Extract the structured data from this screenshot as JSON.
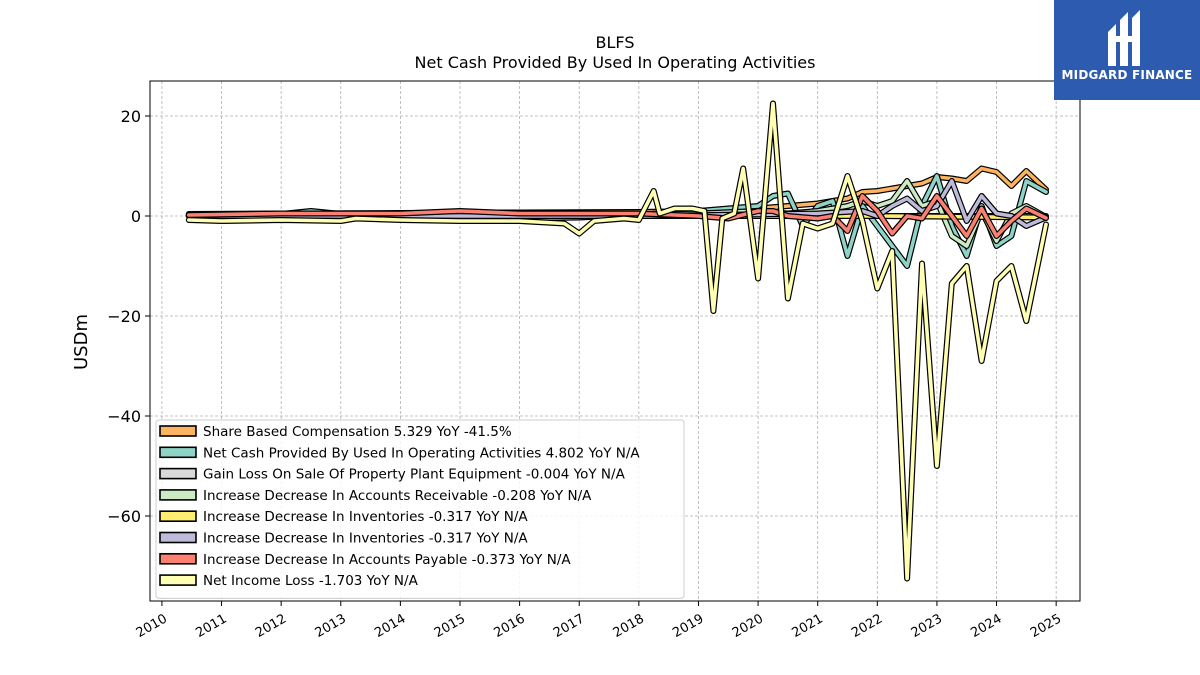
{
  "brand": {
    "name": "MIDGARD FINANCE",
    "colors": {
      "logo_bg": "#2d5bb0",
      "logo_fg": "#ffffff"
    }
  },
  "chart_data": {
    "type": "line",
    "title": "BLFS",
    "subtitle": "Net Cash Provided By Used In Operating Activities",
    "ylabel": "USDm",
    "xlabel": "",
    "xlim": [
      2009.8,
      2025.4
    ],
    "ylim": [
      -77,
      27
    ],
    "yticks": [
      20,
      0,
      -20,
      -40,
      -60
    ],
    "ytick_labels": [
      "20",
      "0",
      "−20",
      "−40",
      "−60"
    ],
    "xticks": [
      2010,
      2011,
      2012,
      2013,
      2014,
      2015,
      2016,
      2017,
      2018,
      2019,
      2020,
      2021,
      2022,
      2023,
      2024,
      2025
    ],
    "xtick_labels": [
      "2010",
      "2011",
      "2012",
      "2013",
      "2014",
      "2015",
      "2016",
      "2017",
      "2018",
      "2019",
      "2020",
      "2021",
      "2022",
      "2023",
      "2024",
      "2025"
    ],
    "grid": true,
    "legend_position": "lower-left",
    "series": [
      {
        "name": "Share Based Compensation  5.329 YoY -41.5%",
        "color": "#fdb462",
        "points": [
          [
            2010.45,
            0.4
          ],
          [
            2012,
            0.5
          ],
          [
            2014,
            0.6
          ],
          [
            2016,
            0.7
          ],
          [
            2018,
            0.8
          ],
          [
            2019,
            1.0
          ],
          [
            2020,
            1.5
          ],
          [
            2021,
            2.5
          ],
          [
            2021.5,
            3.5
          ],
          [
            2021.75,
            4.8
          ],
          [
            2022,
            5.0
          ],
          [
            2022.25,
            5.5
          ],
          [
            2022.5,
            6.0
          ],
          [
            2022.75,
            6.5
          ],
          [
            2023,
            7.8
          ],
          [
            2023.25,
            7.5
          ],
          [
            2023.5,
            7.0
          ],
          [
            2023.75,
            9.5
          ],
          [
            2024,
            8.8
          ],
          [
            2024.25,
            6.0
          ],
          [
            2024.5,
            9.0
          ],
          [
            2024.83,
            5.3
          ]
        ]
      },
      {
        "name": "Net Cash Provided By Used In Operating Activities  4.802 YoY N/A",
        "color": "#8dd3c7",
        "points": [
          [
            2010.45,
            0.2
          ],
          [
            2011,
            0.3
          ],
          [
            2012,
            0.4
          ],
          [
            2012.5,
            1.0
          ],
          [
            2013,
            0.4
          ],
          [
            2014,
            0.3
          ],
          [
            2015,
            -1.0
          ],
          [
            2016,
            -0.5
          ],
          [
            2017,
            -0.3
          ],
          [
            2018,
            0.3
          ],
          [
            2019,
            1.0
          ],
          [
            2019.5,
            1.5
          ],
          [
            2020,
            2.0
          ],
          [
            2020.25,
            4.0
          ],
          [
            2020.5,
            4.5
          ],
          [
            2020.75,
            -2.0
          ],
          [
            2021,
            2.0
          ],
          [
            2021.25,
            3.0
          ],
          [
            2021.5,
            -8.0
          ],
          [
            2021.75,
            2.0
          ],
          [
            2022,
            -2.0
          ],
          [
            2022.25,
            -6.0
          ],
          [
            2022.5,
            -10.0
          ],
          [
            2022.75,
            2.0
          ],
          [
            2023,
            8.0
          ],
          [
            2023.25,
            -2.0
          ],
          [
            2023.5,
            -8.0
          ],
          [
            2023.75,
            2.0
          ],
          [
            2024,
            -6.0
          ],
          [
            2024.25,
            -4.0
          ],
          [
            2024.5,
            7.0
          ],
          [
            2024.83,
            4.8
          ]
        ]
      },
      {
        "name": "Gain Loss On Sale Of Property Plant Equipment  -0.004 YoY N/A",
        "color": "#d9d9d9",
        "points": [
          [
            2010.45,
            0.0
          ],
          [
            2014,
            0.0
          ],
          [
            2018,
            0.0
          ],
          [
            2020,
            0.0
          ],
          [
            2022,
            0.0
          ],
          [
            2024.83,
            0.0
          ]
        ]
      },
      {
        "name": "Increase Decrease In Accounts Receivable  -0.208 YoY N/A",
        "color": "#ccebc5",
        "points": [
          [
            2010.45,
            0.2
          ],
          [
            2014,
            0.2
          ],
          [
            2018,
            0.3
          ],
          [
            2019,
            0.5
          ],
          [
            2020,
            1.0
          ],
          [
            2020.5,
            0.5
          ],
          [
            2021,
            1.0
          ],
          [
            2021.5,
            2.0
          ],
          [
            2021.75,
            3.0
          ],
          [
            2022,
            2.0
          ],
          [
            2022.25,
            3.0
          ],
          [
            2022.5,
            7.0
          ],
          [
            2022.75,
            2.0
          ],
          [
            2023,
            3.0
          ],
          [
            2023.25,
            -4.0
          ],
          [
            2023.5,
            -6.0
          ],
          [
            2023.75,
            1.0
          ],
          [
            2024,
            -5.0
          ],
          [
            2024.25,
            0.5
          ],
          [
            2024.5,
            2.0
          ],
          [
            2024.83,
            -0.2
          ]
        ]
      },
      {
        "name": "Increase Decrease In Inventories  -0.317 YoY N/A",
        "color": "#ffed6f",
        "points": [
          [
            2010.45,
            0.0
          ],
          [
            2014,
            0.0
          ],
          [
            2018,
            0.0
          ],
          [
            2020,
            0.0
          ],
          [
            2022,
            0.0
          ],
          [
            2024.83,
            -0.3
          ]
        ]
      },
      {
        "name": "Increase Decrease In Inventories  -0.317 YoY N/A",
        "color": "#bebada",
        "points": [
          [
            2010.45,
            0.0
          ],
          [
            2014,
            0.0
          ],
          [
            2018,
            0.0
          ],
          [
            2021,
            0.5
          ],
          [
            2021.75,
            1.0
          ],
          [
            2022,
            0.0
          ],
          [
            2022.25,
            2.0
          ],
          [
            2022.5,
            3.5
          ],
          [
            2022.75,
            1.0
          ],
          [
            2023,
            2.0
          ],
          [
            2023.25,
            7.0
          ],
          [
            2023.5,
            -1.0
          ],
          [
            2023.75,
            4.0
          ],
          [
            2024,
            0.5
          ],
          [
            2024.25,
            0.0
          ],
          [
            2024.5,
            -2.0
          ],
          [
            2024.83,
            -0.3
          ]
        ]
      },
      {
        "name": "Increase Decrease In Accounts Payable  -0.373 YoY N/A",
        "color": "#fb8072",
        "points": [
          [
            2010.45,
            0.2
          ],
          [
            2012,
            0.5
          ],
          [
            2014,
            0.5
          ],
          [
            2015,
            1.0
          ],
          [
            2016,
            0.5
          ],
          [
            2017,
            0.5
          ],
          [
            2018,
            0.5
          ],
          [
            2019,
            0.0
          ],
          [
            2019.5,
            -0.5
          ],
          [
            2020,
            1.0
          ],
          [
            2020.25,
            1.0
          ],
          [
            2020.5,
            0.0
          ],
          [
            2021,
            -0.5
          ],
          [
            2021.25,
            0.0
          ],
          [
            2021.5,
            -3.0
          ],
          [
            2021.75,
            4.0
          ],
          [
            2022,
            1.0
          ],
          [
            2022.25,
            -3.5
          ],
          [
            2022.5,
            0.0
          ],
          [
            2022.75,
            -0.5
          ],
          [
            2023,
            4.0
          ],
          [
            2023.25,
            0.0
          ],
          [
            2023.5,
            -4.0
          ],
          [
            2023.75,
            1.5
          ],
          [
            2024,
            -4.0
          ],
          [
            2024.25,
            -1.0
          ],
          [
            2024.5,
            1.5
          ],
          [
            2024.83,
            -0.4
          ]
        ]
      },
      {
        "name": "Net Income Loss  -1.703 YoY N/A",
        "color": "#ffffb3",
        "points": [
          [
            2010.45,
            -0.8
          ],
          [
            2011,
            -1.0
          ],
          [
            2012,
            -0.8
          ],
          [
            2013,
            -1.0
          ],
          [
            2013.25,
            -0.5
          ],
          [
            2014,
            -0.8
          ],
          [
            2015,
            -1.0
          ],
          [
            2016,
            -1.0
          ],
          [
            2016.75,
            -1.5
          ],
          [
            2017,
            -3.5
          ],
          [
            2017.25,
            -1.0
          ],
          [
            2017.75,
            -0.5
          ],
          [
            2018,
            -0.8
          ],
          [
            2018.25,
            5.0
          ],
          [
            2018.35,
            0.5
          ],
          [
            2018.6,
            1.5
          ],
          [
            2018.9,
            1.5
          ],
          [
            2019.1,
            1.0
          ],
          [
            2019.25,
            -19.0
          ],
          [
            2019.4,
            -0.5
          ],
          [
            2019.6,
            0.5
          ],
          [
            2019.75,
            9.5
          ],
          [
            2020,
            -12.5
          ],
          [
            2020.25,
            22.5
          ],
          [
            2020.5,
            -16.5
          ],
          [
            2020.75,
            -1.5
          ],
          [
            2021,
            -2.5
          ],
          [
            2021.25,
            -1.5
          ],
          [
            2021.5,
            8.0
          ],
          [
            2021.75,
            -1.0
          ],
          [
            2022,
            -14.5
          ],
          [
            2022.25,
            -7.0
          ],
          [
            2022.5,
            -72.5
          ],
          [
            2022.75,
            -9.5
          ],
          [
            2023,
            -50.0
          ],
          [
            2023.25,
            -13.5
          ],
          [
            2023.5,
            -10.0
          ],
          [
            2023.75,
            -29.0
          ],
          [
            2024,
            -13.0
          ],
          [
            2024.25,
            -10.0
          ],
          [
            2024.5,
            -21.0
          ],
          [
            2024.83,
            -1.7
          ]
        ]
      }
    ]
  }
}
